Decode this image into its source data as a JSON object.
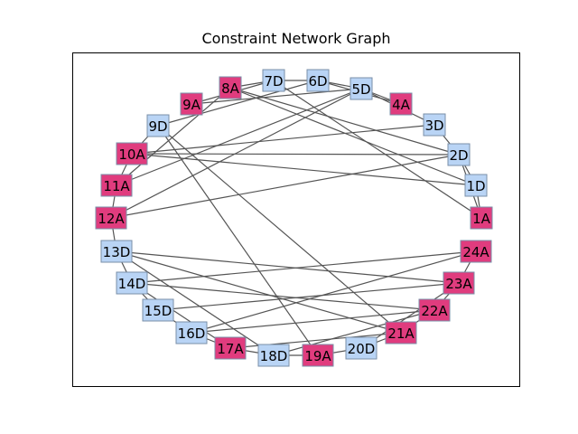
{
  "title": "Constraint Network Graph",
  "colors": {
    "down": "#b9d4f5",
    "across": "#e03c7e",
    "edge": "#555555"
  },
  "nodes": [
    {
      "id": "1A",
      "type": "across"
    },
    {
      "id": "1D",
      "type": "down"
    },
    {
      "id": "2D",
      "type": "down"
    },
    {
      "id": "3D",
      "type": "down"
    },
    {
      "id": "4A",
      "type": "across"
    },
    {
      "id": "5D",
      "type": "down"
    },
    {
      "id": "6D",
      "type": "down"
    },
    {
      "id": "7D",
      "type": "down"
    },
    {
      "id": "8A",
      "type": "across"
    },
    {
      "id": "9A",
      "type": "across"
    },
    {
      "id": "9D",
      "type": "down"
    },
    {
      "id": "10A",
      "type": "across"
    },
    {
      "id": "11A",
      "type": "across"
    },
    {
      "id": "12A",
      "type": "across"
    },
    {
      "id": "13D",
      "type": "down"
    },
    {
      "id": "14D",
      "type": "down"
    },
    {
      "id": "15D",
      "type": "down"
    },
    {
      "id": "16D",
      "type": "down"
    },
    {
      "id": "17A",
      "type": "across"
    },
    {
      "id": "18D",
      "type": "down"
    },
    {
      "id": "19A",
      "type": "across"
    },
    {
      "id": "20D",
      "type": "down"
    },
    {
      "id": "21A",
      "type": "across"
    },
    {
      "id": "22A",
      "type": "across"
    },
    {
      "id": "23A",
      "type": "across"
    },
    {
      "id": "24A",
      "type": "across"
    }
  ],
  "edges": [
    [
      "1A",
      "1D"
    ],
    [
      "1A",
      "2D"
    ],
    [
      "1D",
      "2D"
    ],
    [
      "2D",
      "3D"
    ],
    [
      "1D",
      "8A"
    ],
    [
      "1D",
      "10A"
    ],
    [
      "1A",
      "7D"
    ],
    [
      "2D",
      "10A"
    ],
    [
      "2D",
      "12A"
    ],
    [
      "2D",
      "8A"
    ],
    [
      "3D",
      "5D"
    ],
    [
      "3D",
      "10A"
    ],
    [
      "4A",
      "5D"
    ],
    [
      "4A",
      "6D"
    ],
    [
      "5D",
      "9A"
    ],
    [
      "5D",
      "11A"
    ],
    [
      "5D",
      "12A"
    ],
    [
      "5D",
      "6D"
    ],
    [
      "6D",
      "7D"
    ],
    [
      "6D",
      "9D"
    ],
    [
      "7D",
      "9A"
    ],
    [
      "7D",
      "8A"
    ],
    [
      "9D",
      "10A"
    ],
    [
      "9D",
      "19A"
    ],
    [
      "9D",
      "21A"
    ],
    [
      "8A",
      "11A"
    ],
    [
      "10A",
      "11A"
    ],
    [
      "11A",
      "12A"
    ],
    [
      "12A",
      "13D"
    ],
    [
      "13D",
      "14D"
    ],
    [
      "13D",
      "21A"
    ],
    [
      "13D",
      "23A"
    ],
    [
      "13D",
      "18D"
    ],
    [
      "14D",
      "15D"
    ],
    [
      "14D",
      "22A"
    ],
    [
      "14D",
      "24A"
    ],
    [
      "14D",
      "17A"
    ],
    [
      "15D",
      "16D"
    ],
    [
      "15D",
      "23A"
    ],
    [
      "16D",
      "17A"
    ],
    [
      "16D",
      "24A"
    ],
    [
      "16D",
      "22A"
    ],
    [
      "17A",
      "18D"
    ],
    [
      "17A",
      "21A"
    ],
    [
      "18D",
      "19A"
    ],
    [
      "18D",
      "22A"
    ],
    [
      "19A",
      "20D"
    ],
    [
      "20D",
      "21A"
    ],
    [
      "20D",
      "23A"
    ],
    [
      "21A",
      "22A"
    ],
    [
      "22A",
      "23A"
    ],
    [
      "23A",
      "24A"
    ]
  ]
}
